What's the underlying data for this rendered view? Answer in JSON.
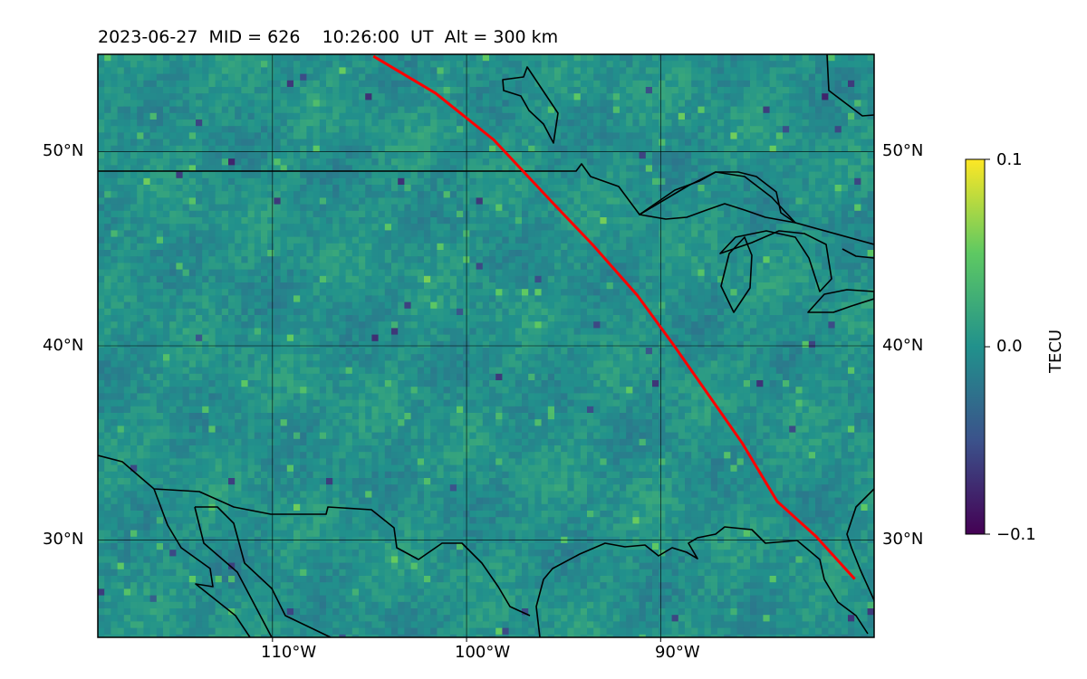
{
  "header": {
    "date": "2023-06-27",
    "mid": "MID = 626",
    "time": "10:26:00  UT",
    "alt": "Alt = 300 km"
  },
  "map": {
    "lon_range": [
      -119,
      -79
    ],
    "lat_range": [
      25,
      55
    ],
    "lon_ticks": [
      {
        "value": -110,
        "label": "110°W"
      },
      {
        "value": -100,
        "label": "100°W"
      },
      {
        "value": -90,
        "label": "90°W"
      }
    ],
    "lat_ticks": [
      {
        "value": 50,
        "label": "50°N"
      },
      {
        "value": 40,
        "label": "40°N"
      },
      {
        "value": 30,
        "label": "30°N"
      }
    ],
    "gridlines": true,
    "background_field": "TEC perturbation map (noisy, mostly near 0)",
    "track_color": "#ff0000",
    "coastline_color": "#000000"
  },
  "colorbar": {
    "title": "TECU",
    "ticks": [
      {
        "value": 0.1,
        "label": "0.1"
      },
      {
        "value": 0.0,
        "label": "0.0"
      },
      {
        "value": -0.1,
        "label": "−0.1"
      }
    ],
    "range": [
      -0.1,
      0.1
    ],
    "colormap": "viridis",
    "stops": [
      "#440154",
      "#3b528b",
      "#21918c",
      "#5ec962",
      "#fde725"
    ]
  },
  "track": {
    "points": [
      [
        -104.8,
        54.9
      ],
      [
        -101.6,
        53.0
      ],
      [
        -98.6,
        50.6
      ],
      [
        -95.6,
        47.4
      ],
      [
        -93.5,
        45.2
      ],
      [
        -91.2,
        42.6
      ],
      [
        -89.3,
        40.0
      ],
      [
        -87.2,
        37.0
      ],
      [
        -85.8,
        35.0
      ],
      [
        -84.0,
        32.0
      ],
      [
        -82.0,
        30.2
      ],
      [
        -80.0,
        28.0
      ]
    ]
  }
}
